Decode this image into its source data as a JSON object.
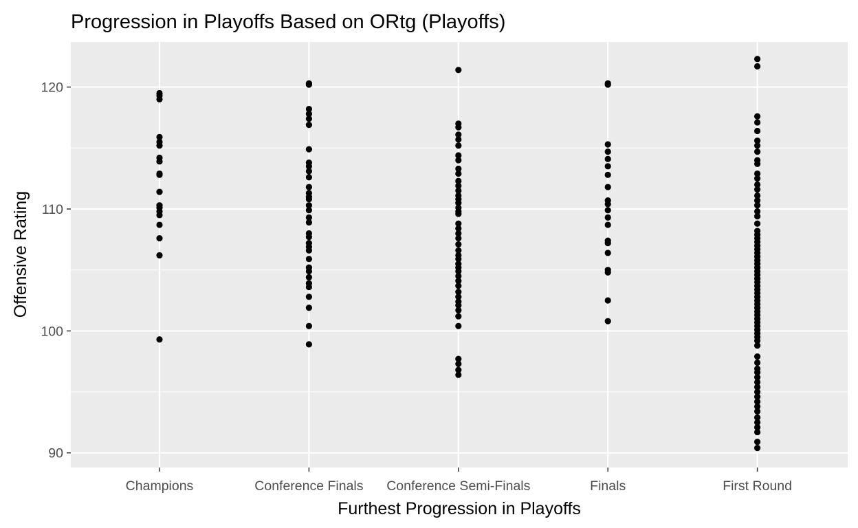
{
  "chart_data": {
    "type": "scatter",
    "title": "Progression in Playoffs Based on ORtg (Playoffs)",
    "xlabel": "Furthest Progression in Playoffs",
    "ylabel": "Offensive Rating",
    "categories": [
      "Champions",
      "Conference Finals",
      "Conference Semi-Finals",
      "Finals",
      "First Round"
    ],
    "ylim": [
      88.8,
      123.7
    ],
    "y_ticks": [
      90,
      100,
      110,
      120
    ],
    "grid": true,
    "panel_background": "#ebebeb",
    "grid_color": "#ffffff",
    "point_color": "#000000",
    "points": [
      {
        "category": "Champions",
        "values": [
          119.5,
          119.3,
          119.0,
          115.9,
          115.5,
          115.2,
          114.2,
          113.9,
          112.9,
          112.8,
          111.4,
          110.3,
          110.1,
          109.8,
          109.5,
          108.7,
          107.6,
          106.2,
          99.3
        ]
      },
      {
        "category": "Conference Finals",
        "values": [
          120.3,
          120.2,
          118.2,
          117.8,
          117.4,
          116.9,
          114.9,
          113.8,
          113.5,
          113.1,
          112.6,
          111.8,
          111.3,
          111.0,
          110.8,
          110.3,
          109.9,
          109.3,
          108.9,
          108.0,
          107.7,
          107.2,
          106.9,
          106.6,
          105.9,
          105.2,
          104.9,
          104.4,
          103.9,
          103.6,
          102.8,
          101.9,
          100.4,
          98.9
        ]
      },
      {
        "category": "Conference Semi-Finals",
        "values": [
          121.4,
          117.0,
          116.7,
          116.1,
          115.7,
          115.2,
          114.4,
          114.0,
          113.3,
          112.9,
          112.3,
          111.9,
          111.5,
          111.1,
          110.8,
          110.5,
          110.1,
          109.8,
          109.6,
          108.8,
          108.4,
          108.0,
          107.6,
          107.1,
          106.6,
          106.2,
          105.9,
          105.5,
          105.2,
          104.9,
          104.5,
          104.1,
          103.7,
          103.2,
          102.8,
          102.4,
          102.1,
          101.7,
          101.2,
          100.4,
          97.7,
          97.3,
          96.8,
          96.4
        ]
      },
      {
        "category": "Finals",
        "values": [
          120.3,
          120.2,
          115.3,
          114.7,
          114.1,
          113.5,
          112.8,
          111.8,
          110.7,
          110.4,
          109.9,
          109.3,
          108.7,
          107.4,
          107.2,
          106.4,
          105.0,
          104.8,
          102.5,
          100.8
        ]
      },
      {
        "category": "First Round",
        "values": [
          122.3,
          121.7,
          117.6,
          117.1,
          116.4,
          115.6,
          115.2,
          114.7,
          114.0,
          113.7,
          112.9,
          112.5,
          112.0,
          111.6,
          111.1,
          110.7,
          110.3,
          109.8,
          109.4,
          108.8,
          108.2,
          107.9,
          107.6,
          107.3,
          107.0,
          106.7,
          106.4,
          106.1,
          105.8,
          105.5,
          105.2,
          104.9,
          104.6,
          104.3,
          104.0,
          103.7,
          103.4,
          103.1,
          102.8,
          102.5,
          102.2,
          101.9,
          101.6,
          101.3,
          101.0,
          100.7,
          100.4,
          100.1,
          99.8,
          99.5,
          99.2,
          98.8,
          97.9,
          97.4,
          96.9,
          96.6,
          96.2,
          95.8,
          95.4,
          95.0,
          94.6,
          94.2,
          93.8,
          93.4,
          92.9,
          92.5,
          92.1,
          91.7,
          90.9,
          90.4
        ]
      }
    ]
  }
}
